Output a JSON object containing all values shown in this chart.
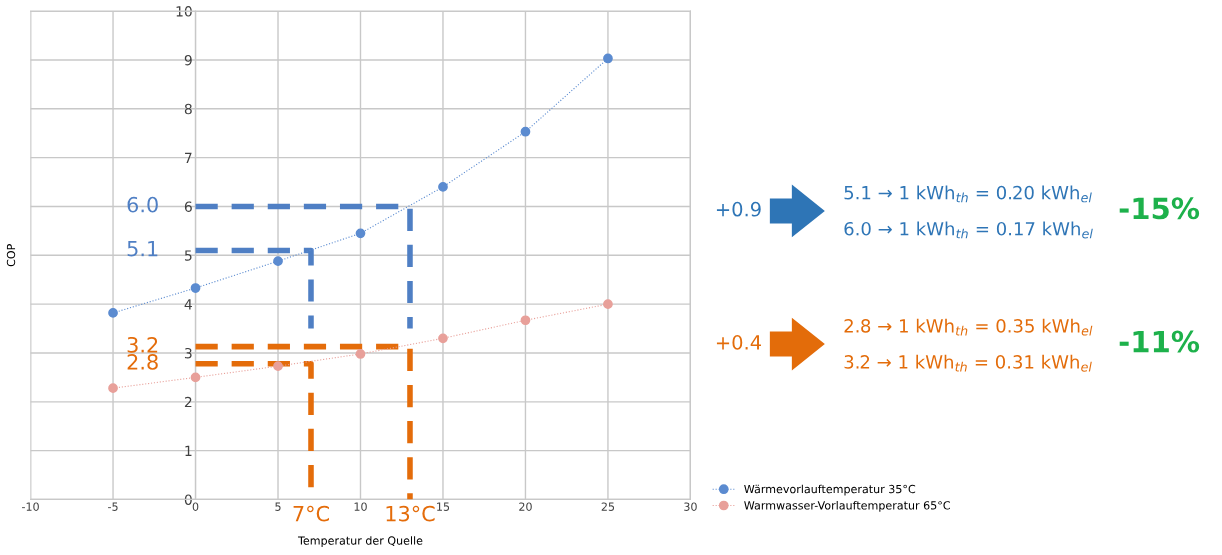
{
  "chart_data": [
    {
      "type": "line",
      "xlabel": "Temperatur der Quelle",
      "ylabel": "COP",
      "x": [
        -5,
        0,
        5,
        10,
        15,
        20,
        25
      ],
      "series": [
        {
          "name": "Wärmevorlauftemperatur 35°C",
          "color": "#5b8bd0",
          "values": [
            3.82,
            4.33,
            4.88,
            5.45,
            6.4,
            7.53,
            9.03
          ]
        },
        {
          "name": "Warmwasser-Vorlauftemperatur 65°C",
          "color": "#e8a09a",
          "values": [
            2.28,
            2.5,
            2.73,
            2.98,
            3.3,
            3.67,
            4.0
          ]
        },
        {
          "color": "#4f7fc4",
          "x": [
            0,
            13,
            13
          ],
          "values": [
            6.0,
            6.0,
            3.5
          ],
          "line_style": "dashed",
          "marker": "none"
        },
        {
          "color": "#4f7fc4",
          "x": [
            0,
            7,
            7
          ],
          "values": [
            5.1,
            5.1,
            3.5
          ],
          "line_style": "dashed",
          "marker": "none"
        },
        {
          "color": "#e46c0a",
          "x": [
            0,
            13,
            13
          ],
          "values": [
            3.13,
            3.13,
            0
          ],
          "line_style": "dashed",
          "marker": "none"
        },
        {
          "color": "#e46c0a",
          "x": [
            0,
            7,
            7
          ],
          "values": [
            2.78,
            2.78,
            0
          ],
          "line_style": "dashed",
          "marker": "none"
        }
      ],
      "xlim": [
        -10,
        30
      ],
      "xticks": [
        -10,
        -5,
        0,
        5,
        10,
        15,
        20,
        25,
        30
      ],
      "ylim": [
        0,
        10
      ],
      "yticks": [
        0,
        1,
        2,
        3,
        4,
        5,
        6,
        7,
        8,
        9,
        10
      ],
      "grid": true,
      "legend": "bottom right",
      "marker": "circle",
      "line_style": "dotted",
      "annotations": [
        {
          "text": "6.0",
          "x": 0,
          "y": 6.0
        },
        {
          "text": "5.1",
          "x": 0,
          "y": 5.1
        },
        {
          "text": "3.2",
          "x": 0,
          "y": 3.13
        },
        {
          "text": "2.8",
          "x": 0,
          "y": 2.78
        },
        {
          "text": "7°C",
          "x": 7,
          "y": 0
        },
        {
          "text": "13°C",
          "x": 13,
          "y": 0
        }
      ]
    },
    {
      "type": "other",
      "colors": [
        "#2e75b6",
        "#2e75b6",
        "#2e75b6",
        "#1db14b",
        "#e36c0a",
        "#e36c0a",
        "#e36c0a",
        "#1db14b"
      ],
      "annotations": [
        "+0.9",
        "5.1 → 1 kWh$_{th}$ = 0.20 kWh$_{el}$",
        "6.0 → 1 kWh$_{th}$ = 0.17 kWh$_{el}$",
        "-15%",
        "+0.4",
        "2.8 → 1 kWh$_{th}$ = 0.35 kWh$_{el}$",
        "3.2 → 1 kWh$_{th}$ = 0.31 kWh$_{el}$",
        "-11%"
      ]
    }
  ]
}
